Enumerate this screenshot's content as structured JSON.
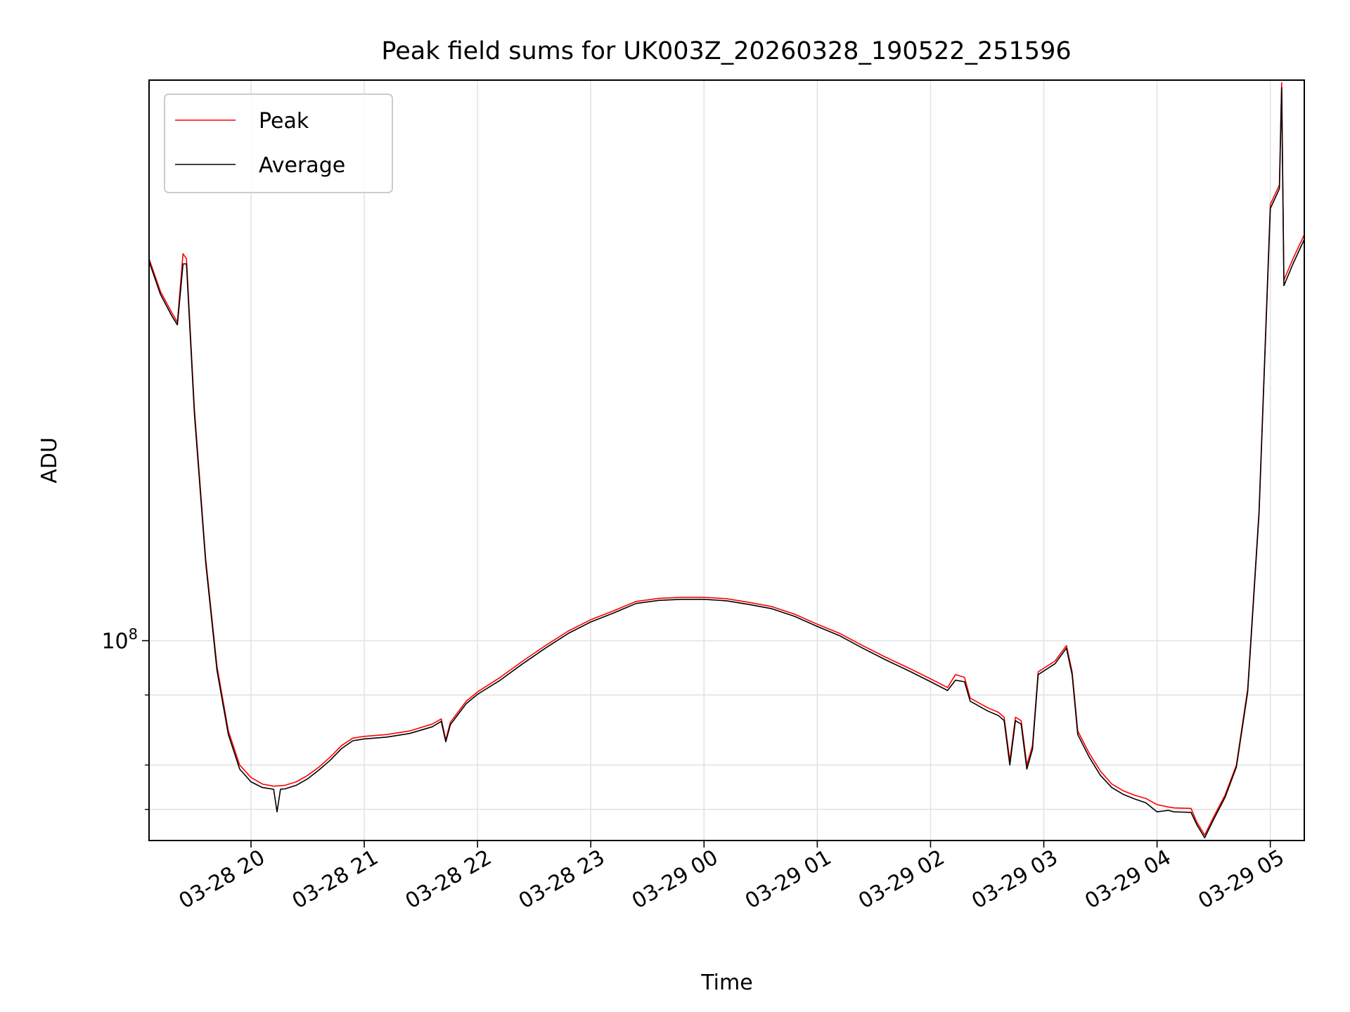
{
  "chart_data": {
    "type": "line",
    "title": "Peak field sums for UK003Z_20260328_190522_251596",
    "xlabel": "Time",
    "ylabel": "ADU",
    "yscale": "log",
    "ylim": [
      44000000,
      1000000000
    ],
    "xlim_hours": [
      19.1,
      29.3
    ],
    "grid": true,
    "legend_position": "upper-left",
    "x_ticks": [
      {
        "hour": 20,
        "label": "03-28 20"
      },
      {
        "hour": 21,
        "label": "03-28 21"
      },
      {
        "hour": 22,
        "label": "03-28 22"
      },
      {
        "hour": 23,
        "label": "03-28 23"
      },
      {
        "hour": 24,
        "label": "03-29 00"
      },
      {
        "hour": 25,
        "label": "03-29 01"
      },
      {
        "hour": 26,
        "label": "03-29 02"
      },
      {
        "hour": 27,
        "label": "03-29 03"
      },
      {
        "hour": 28,
        "label": "03-29 04"
      },
      {
        "hour": 29,
        "label": "03-29 05"
      }
    ],
    "y_major_ticks": [
      {
        "value": 100000000,
        "label_base": "10",
        "label_exp": "8"
      }
    ],
    "y_minor_ticks": [
      50000000,
      60000000,
      80000000
    ],
    "series": [
      {
        "name": "Peak",
        "color": "#ff0000",
        "points": [
          [
            19.1,
            480000000
          ],
          [
            19.2,
            420000000
          ],
          [
            19.3,
            385000000
          ],
          [
            19.35,
            370000000
          ],
          [
            19.4,
            490000000
          ],
          [
            19.43,
            480000000
          ],
          [
            19.5,
            260000000
          ],
          [
            19.6,
            140000000
          ],
          [
            19.7,
            90000000
          ],
          [
            19.8,
            69000000
          ],
          [
            19.9,
            60000000
          ],
          [
            20.0,
            57000000
          ],
          [
            20.1,
            55500000
          ],
          [
            20.2,
            55000000
          ],
          [
            20.3,
            55200000
          ],
          [
            20.4,
            56000000
          ],
          [
            20.5,
            57500000
          ],
          [
            20.6,
            59500000
          ],
          [
            20.7,
            62000000
          ],
          [
            20.8,
            65000000
          ],
          [
            20.9,
            67000000
          ],
          [
            21.0,
            67500000
          ],
          [
            21.2,
            68000000
          ],
          [
            21.4,
            69000000
          ],
          [
            21.6,
            71000000
          ],
          [
            21.68,
            72500000
          ],
          [
            21.72,
            66500000
          ],
          [
            21.76,
            71500000
          ],
          [
            21.9,
            78000000
          ],
          [
            22.0,
            81000000
          ],
          [
            22.2,
            86000000
          ],
          [
            22.4,
            92000000
          ],
          [
            22.6,
            98000000
          ],
          [
            22.8,
            104000000
          ],
          [
            23.0,
            109000000
          ],
          [
            23.2,
            113000000
          ],
          [
            23.4,
            117500000
          ],
          [
            23.6,
            119000000
          ],
          [
            23.8,
            119500000
          ],
          [
            24.0,
            119500000
          ],
          [
            24.2,
            118800000
          ],
          [
            24.4,
            117000000
          ],
          [
            24.6,
            115000000
          ],
          [
            24.8,
            111500000
          ],
          [
            25.0,
            107000000
          ],
          [
            25.2,
            103000000
          ],
          [
            25.4,
            98000000
          ],
          [
            25.6,
            93500000
          ],
          [
            25.8,
            89500000
          ],
          [
            26.0,
            85500000
          ],
          [
            26.15,
            82500000
          ],
          [
            26.22,
            87000000
          ],
          [
            26.3,
            86000000
          ],
          [
            26.35,
            79000000
          ],
          [
            26.5,
            76000000
          ],
          [
            26.6,
            74500000
          ],
          [
            26.65,
            73000000
          ],
          [
            26.7,
            61000000
          ],
          [
            26.75,
            73000000
          ],
          [
            26.8,
            72000000
          ],
          [
            26.85,
            60000000
          ],
          [
            26.9,
            65000000
          ],
          [
            26.95,
            88000000
          ],
          [
            27.1,
            92000000
          ],
          [
            27.2,
            98000000
          ],
          [
            27.25,
            88000000
          ],
          [
            27.3,
            69000000
          ],
          [
            27.4,
            63000000
          ],
          [
            27.5,
            58500000
          ],
          [
            27.6,
            55500000
          ],
          [
            27.7,
            54000000
          ],
          [
            27.8,
            53000000
          ],
          [
            27.9,
            52300000
          ],
          [
            28.0,
            51000000
          ],
          [
            28.1,
            50500000
          ],
          [
            28.15,
            50300000
          ],
          [
            28.3,
            50200000
          ],
          [
            28.35,
            47500000
          ],
          [
            28.42,
            45000000
          ],
          [
            28.5,
            48500000
          ],
          [
            28.6,
            53000000
          ],
          [
            28.7,
            60000000
          ],
          [
            28.8,
            82000000
          ],
          [
            28.9,
            170000000
          ],
          [
            29.0,
            600000000
          ],
          [
            29.08,
            650000000
          ],
          [
            29.1,
            990000000
          ],
          [
            29.12,
            440000000
          ],
          [
            29.2,
            480000000
          ],
          [
            29.3,
            530000000
          ]
        ]
      },
      {
        "name": "Average",
        "color": "#000000",
        "points": [
          [
            19.1,
            475000000
          ],
          [
            19.2,
            415000000
          ],
          [
            19.3,
            380000000
          ],
          [
            19.35,
            366000000
          ],
          [
            19.4,
            470000000
          ],
          [
            19.43,
            470000000
          ],
          [
            19.5,
            255000000
          ],
          [
            19.6,
            138000000
          ],
          [
            19.7,
            88500000
          ],
          [
            19.8,
            68000000
          ],
          [
            19.9,
            59000000
          ],
          [
            20.0,
            56000000
          ],
          [
            20.1,
            54700000
          ],
          [
            20.2,
            54300000
          ],
          [
            20.23,
            49500000
          ],
          [
            20.26,
            54300000
          ],
          [
            20.3,
            54400000
          ],
          [
            20.4,
            55200000
          ],
          [
            20.5,
            56700000
          ],
          [
            20.6,
            58800000
          ],
          [
            20.7,
            61200000
          ],
          [
            20.8,
            64200000
          ],
          [
            20.9,
            66300000
          ],
          [
            21.0,
            66800000
          ],
          [
            21.2,
            67300000
          ],
          [
            21.4,
            68300000
          ],
          [
            21.6,
            70200000
          ],
          [
            21.68,
            71800000
          ],
          [
            21.72,
            66000000
          ],
          [
            21.76,
            70800000
          ],
          [
            21.9,
            77200000
          ],
          [
            22.0,
            80200000
          ],
          [
            22.2,
            85000000
          ],
          [
            22.4,
            91000000
          ],
          [
            22.6,
            97000000
          ],
          [
            22.8,
            103000000
          ],
          [
            23.0,
            108000000
          ],
          [
            23.2,
            112000000
          ],
          [
            23.4,
            116500000
          ],
          [
            23.6,
            118000000
          ],
          [
            23.8,
            118500000
          ],
          [
            24.0,
            118500000
          ],
          [
            24.2,
            117800000
          ],
          [
            24.4,
            116000000
          ],
          [
            24.6,
            114000000
          ],
          [
            24.8,
            110500000
          ],
          [
            25.0,
            106000000
          ],
          [
            25.2,
            102000000
          ],
          [
            25.4,
            97000000
          ],
          [
            25.6,
            92500000
          ],
          [
            25.8,
            88500000
          ],
          [
            26.0,
            84500000
          ],
          [
            26.15,
            81500000
          ],
          [
            26.22,
            85000000
          ],
          [
            26.3,
            84500000
          ],
          [
            26.35,
            78000000
          ],
          [
            26.5,
            75000000
          ],
          [
            26.6,
            73500000
          ],
          [
            26.65,
            72000000
          ],
          [
            26.7,
            60000000
          ],
          [
            26.75,
            72000000
          ],
          [
            26.8,
            71000000
          ],
          [
            26.85,
            59000000
          ],
          [
            26.9,
            64000000
          ],
          [
            26.95,
            87000000
          ],
          [
            27.1,
            91000000
          ],
          [
            27.2,
            97000000
          ],
          [
            27.25,
            87000000
          ],
          [
            27.3,
            68000000
          ],
          [
            27.4,
            62000000
          ],
          [
            27.5,
            57500000
          ],
          [
            27.6,
            54700000
          ],
          [
            27.7,
            53200000
          ],
          [
            27.8,
            52200000
          ],
          [
            27.9,
            51400000
          ],
          [
            28.0,
            49500000
          ],
          [
            28.1,
            49800000
          ],
          [
            28.15,
            49500000
          ],
          [
            28.3,
            49400000
          ],
          [
            28.35,
            47000000
          ],
          [
            28.42,
            44500000
          ],
          [
            28.5,
            48000000
          ],
          [
            28.6,
            52500000
          ],
          [
            28.7,
            59500000
          ],
          [
            28.8,
            81000000
          ],
          [
            28.9,
            168000000
          ],
          [
            29.0,
            590000000
          ],
          [
            29.08,
            640000000
          ],
          [
            29.1,
            970000000
          ],
          [
            29.12,
            430000000
          ],
          [
            29.2,
            470000000
          ],
          [
            29.3,
            520000000
          ]
        ]
      }
    ]
  }
}
